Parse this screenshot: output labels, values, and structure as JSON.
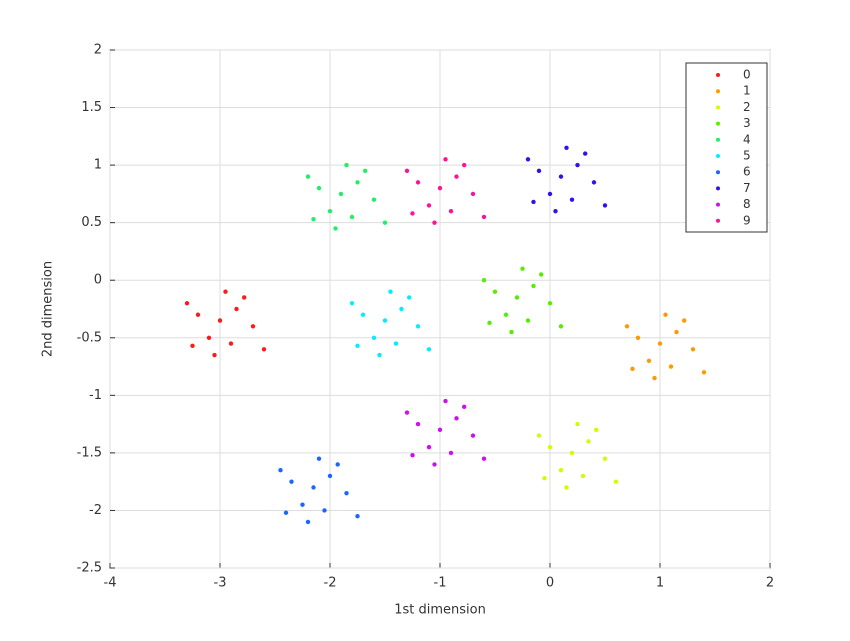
{
  "chart_data": {
    "type": "scatter",
    "x_label": "1st dimension",
    "y_label": "2nd dimension",
    "xlim": [
      -4,
      2
    ],
    "xticks": [
      -4,
      -3,
      -2,
      -1,
      0,
      1,
      2
    ],
    "ylim": [
      -2.5,
      2
    ],
    "yticks": [
      -2.5,
      -2,
      -1.5,
      -1,
      -0.5,
      0,
      0.5,
      1,
      1.5,
      2
    ],
    "grid": true,
    "legend": "upper-right",
    "series": [
      {
        "name": "0",
        "color": "#ff1a1a",
        "x": [
          -3,
          -2.85,
          -3.2,
          -2.9,
          -3.1,
          -2.7,
          -3.3,
          -2.95,
          -3.05,
          -2.78,
          -3.25,
          -2.6
        ],
        "y": [
          -0.35,
          -0.25,
          -0.3,
          -0.55,
          -0.5,
          -0.4,
          -0.2,
          -0.1,
          -0.65,
          -0.15,
          -0.57,
          -0.6
        ]
      },
      {
        "name": "1",
        "color": "#ff9900",
        "x": [
          1,
          1.15,
          0.8,
          1.1,
          0.9,
          1.3,
          0.7,
          1.05,
          0.95,
          1.22,
          0.75,
          1.4
        ],
        "y": [
          -0.55,
          -0.45,
          -0.5,
          -0.75,
          -0.7,
          -0.6,
          -0.4,
          -0.3,
          -0.85,
          -0.35,
          -0.77,
          -0.8
        ]
      },
      {
        "name": "2",
        "color": "#ccff00",
        "x": [
          0.2,
          0.35,
          0,
          0.3,
          0.1,
          0.5,
          -0.1,
          0.25,
          0.15,
          0.42,
          -0.05,
          0.6
        ],
        "y": [
          -1.5,
          -1.4,
          -1.45,
          -1.7,
          -1.65,
          -1.55,
          -1.35,
          -1.25,
          -1.8,
          -1.3,
          -1.72,
          -1.75
        ]
      },
      {
        "name": "3",
        "color": "#55ee00",
        "x": [
          -0.3,
          -0.15,
          -0.5,
          -0.2,
          -0.4,
          0,
          -0.6,
          -0.25,
          -0.35,
          -0.08,
          -0.55,
          0.1
        ],
        "y": [
          -0.15,
          -0.05,
          -0.1,
          -0.35,
          -0.3,
          -0.2,
          0,
          0.1,
          -0.45,
          0.05,
          -0.37,
          -0.4
        ]
      },
      {
        "name": "4",
        "color": "#22ee66",
        "x": [
          -1.9,
          -1.75,
          -2.1,
          -1.8,
          -2,
          -1.6,
          -2.2,
          -1.85,
          -1.95,
          -1.68,
          -2.15,
          -1.5
        ],
        "y": [
          0.75,
          0.85,
          0.8,
          0.55,
          0.6,
          0.7,
          0.9,
          1,
          0.45,
          0.95,
          0.53,
          0.5
        ]
      },
      {
        "name": "5",
        "color": "#00eeff",
        "x": [
          -1.5,
          -1.35,
          -1.7,
          -1.4,
          -1.6,
          -1.2,
          -1.8,
          -1.45,
          -1.55,
          -1.28,
          -1.75,
          -1.1
        ],
        "y": [
          -0.35,
          -0.25,
          -0.3,
          -0.55,
          -0.5,
          -0.4,
          -0.2,
          -0.1,
          -0.65,
          -0.15,
          -0.57,
          -0.6
        ]
      },
      {
        "name": "6",
        "color": "#1a66ff",
        "x": [
          -2.15,
          -2,
          -2.35,
          -2.05,
          -2.25,
          -1.85,
          -2.45,
          -2.1,
          -2.2,
          -1.93,
          -2.4,
          -1.75
        ],
        "y": [
          -1.8,
          -1.7,
          -1.75,
          -2,
          -1.95,
          -1.85,
          -1.65,
          -1.55,
          -2.1,
          -1.6,
          -2.02,
          -2.05
        ]
      },
      {
        "name": "7",
        "color": "#3311ee",
        "x": [
          0.1,
          0.25,
          -0.1,
          0.2,
          0,
          0.4,
          -0.2,
          0.15,
          0.05,
          0.32,
          -0.15,
          0.5
        ],
        "y": [
          0.9,
          1,
          0.95,
          0.7,
          0.75,
          0.85,
          1.05,
          1.15,
          0.6,
          1.1,
          0.68,
          0.65
        ]
      },
      {
        "name": "8",
        "color": "#cc11ee",
        "x": [
          -1,
          -0.85,
          -1.2,
          -0.9,
          -1.1,
          -0.7,
          -1.3,
          -0.95,
          -1.05,
          -0.78,
          -1.25,
          -0.6
        ],
        "y": [
          -1.3,
          -1.2,
          -1.25,
          -1.5,
          -1.45,
          -1.35,
          -1.15,
          -1.05,
          -1.6,
          -1.1,
          -1.52,
          -1.55
        ]
      },
      {
        "name": "9",
        "color": "#ff1199",
        "x": [
          -1,
          -0.85,
          -1.2,
          -0.9,
          -1.1,
          -0.7,
          -1.3,
          -0.95,
          -1.05,
          -0.78,
          -1.25,
          -0.6
        ],
        "y": [
          0.8,
          0.9,
          0.85,
          0.6,
          0.65,
          0.75,
          0.95,
          1.05,
          0.5,
          1,
          0.58,
          0.55
        ]
      }
    ]
  }
}
